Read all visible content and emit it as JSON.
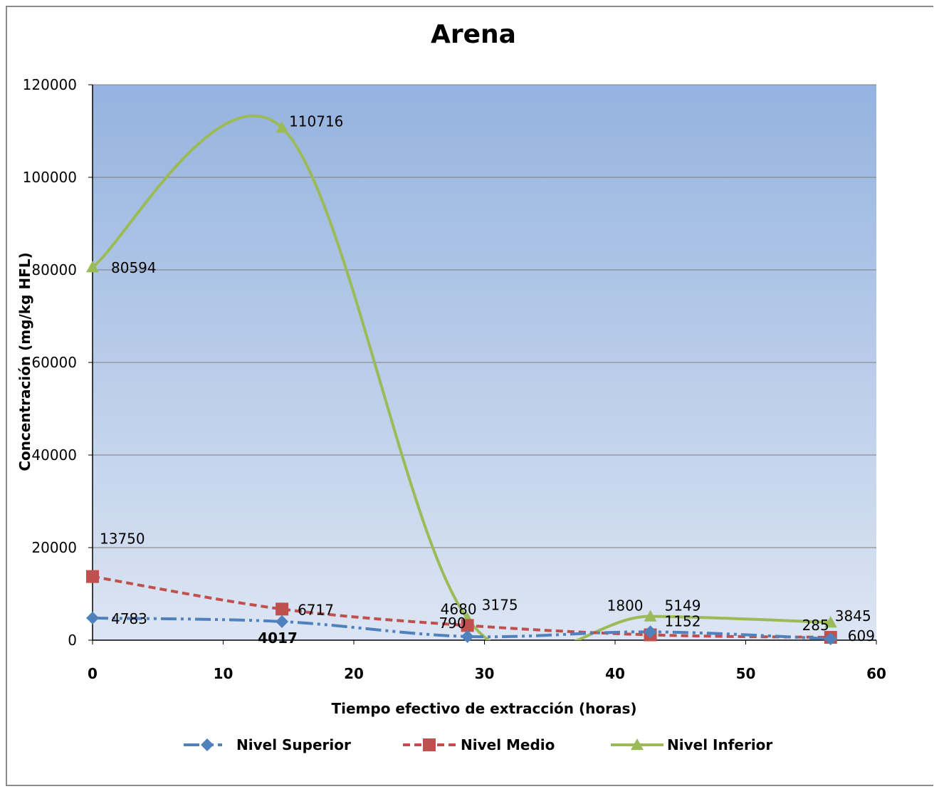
{
  "chart_data": {
    "type": "line",
    "title": "Arena",
    "xlabel": "Tiempo efectivo  de extracción (horas)",
    "ylabel": "Concentración (mg/kg HFL)",
    "xlim": [
      0,
      60
    ],
    "ylim": [
      0,
      120000
    ],
    "xticks": [
      "0",
      "10",
      "20",
      "30",
      "40",
      "50",
      "60"
    ],
    "yticks": [
      "0",
      "20000",
      "40000",
      "60000",
      "80000",
      "100000",
      "120000"
    ],
    "grid": true,
    "smoothed": true,
    "legend_position": "bottom",
    "series": [
      {
        "name": "Nivel Superior",
        "color": "#4f81bd",
        "marker": "diamond",
        "line_style": "dash-dot-dot",
        "x": [
          0,
          14.5,
          28.7,
          42.7,
          56.5
        ],
        "y": [
          4783,
          4017,
          790,
          1800,
          285
        ],
        "labels": [
          "4783",
          "4017",
          "790",
          "1800",
          "285"
        ]
      },
      {
        "name": "Nivel Medio",
        "color": "#c0504d",
        "marker": "square",
        "line_style": "dash",
        "x": [
          0,
          14.5,
          28.7,
          42.7,
          56.5
        ],
        "y": [
          13750,
          6717,
          3175,
          1152,
          609
        ],
        "labels": [
          "13750",
          "6717",
          "3175",
          "1152",
          "609"
        ]
      },
      {
        "name": "Nivel Inferior",
        "color": "#9bbb59",
        "marker": "triangle",
        "line_style": "solid",
        "x": [
          0,
          14.5,
          28.7,
          42.7,
          56.5
        ],
        "y": [
          80594,
          110716,
          4680,
          5149,
          3845
        ],
        "labels": [
          "80594",
          "110716",
          "4680",
          "5149",
          "3845"
        ]
      }
    ]
  }
}
